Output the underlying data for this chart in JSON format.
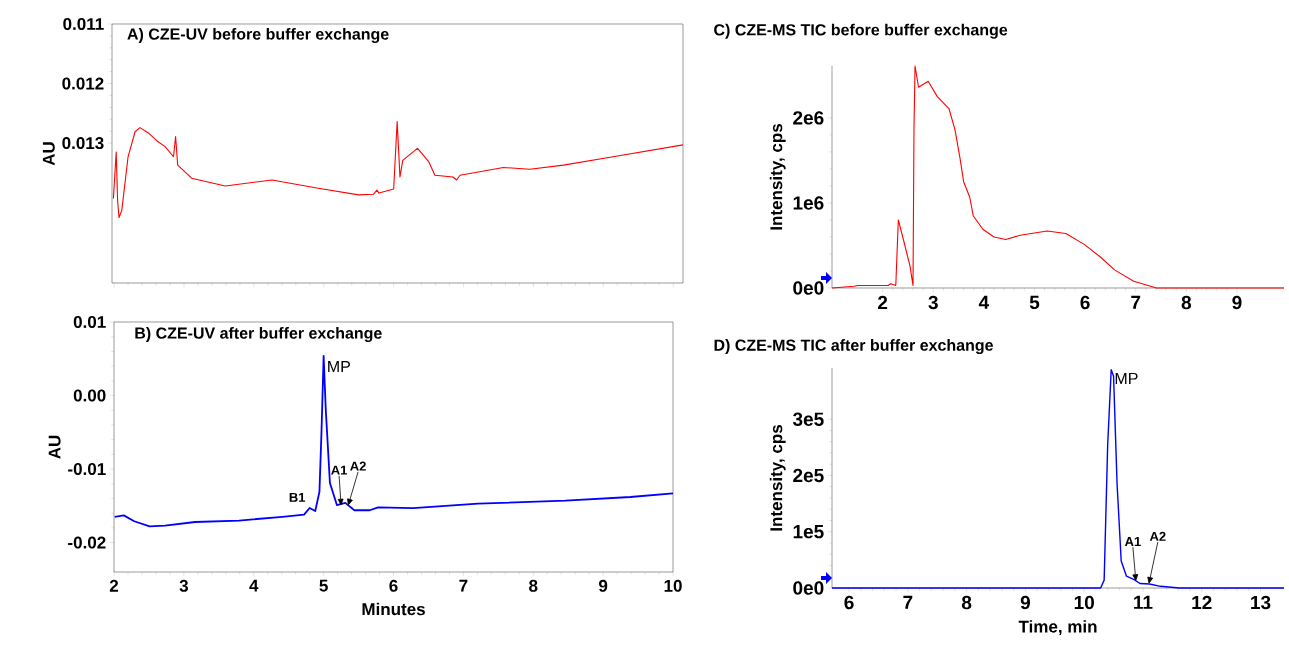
{
  "chart_data": [
    {
      "type": "line",
      "title": "A) CZE-UV before buffer exchange",
      "ylabel": "AU",
      "tick_labels": "y",
      "xlim": [
        1.97,
        10.14
      ],
      "ylim": [
        0.01535,
        0.011
      ],
      "xticks": [
        2,
        3,
        4,
        5,
        6,
        7,
        8,
        9,
        10
      ],
      "yticks": [
        0.011,
        0.012,
        0.013
      ],
      "x": [
        1.99,
        2.03,
        2.05,
        2.07,
        2.11,
        2.2,
        2.3,
        2.37,
        2.49,
        2.61,
        2.73,
        2.85,
        2.88,
        2.91,
        3.11,
        3.59,
        4.26,
        4.92,
        5.5,
        5.71,
        5.76,
        5.79,
        6.0,
        6.05,
        6.09,
        6.13,
        6.34,
        6.4,
        6.5,
        6.59,
        6.85,
        6.9,
        6.95,
        7.57,
        7.95,
        8.43,
        9.14,
        10.14
      ],
      "series": [
        {
          "color": "#ff0000",
          "values": [
            0.01393,
            0.01315,
            0.01396,
            0.01425,
            0.01413,
            0.01323,
            0.01281,
            0.01274,
            0.01283,
            0.01296,
            0.01306,
            0.01323,
            0.01289,
            0.01337,
            0.01359,
            0.01372,
            0.01362,
            0.01376,
            0.01387,
            0.01386,
            0.01379,
            0.01384,
            0.01377,
            0.01264,
            0.01357,
            0.01329,
            0.01309,
            0.01317,
            0.01331,
            0.01354,
            0.01357,
            0.01362,
            0.01354,
            0.01341,
            0.01344,
            0.01337,
            0.01323,
            0.01303
          ]
        }
      ]
    },
    {
      "type": "line",
      "title": "B) CZE-UV after buffer exchange",
      "xlabel": "Minutes",
      "ylabel": "AU",
      "xlim": [
        2,
        10
      ],
      "ylim": [
        -0.024,
        0.01
      ],
      "xticks": [
        2,
        3,
        4,
        5,
        6,
        7,
        8,
        9,
        10
      ],
      "yticks": [
        0.01,
        {
          "value": 0,
          "label": "0.00"
        },
        -0.01,
        -0.02
      ],
      "x": [
        2.01,
        2.14,
        2.29,
        2.51,
        2.73,
        3.16,
        3.79,
        4.41,
        4.72,
        4.8,
        4.88,
        4.94,
        4.97,
        5.0,
        5.03,
        5.09,
        5.19,
        5.31,
        5.44,
        5.66,
        5.78,
        6.28,
        7.21,
        8.46,
        9.39,
        10.0
      ],
      "series": [
        {
          "color": "#0000ff",
          "values": [
            -0.0165,
            -0.0163,
            -0.0171,
            -0.0178,
            -0.0177,
            -0.0172,
            -0.017,
            -0.0165,
            -0.0162,
            -0.0153,
            -0.0157,
            -0.0131,
            -0.0048,
            0.0054,
            -0.0018,
            -0.0119,
            -0.0149,
            -0.0146,
            -0.0156,
            -0.0156,
            -0.0152,
            -0.0153,
            -0.0147,
            -0.0143,
            -0.0138,
            -0.0133
          ]
        }
      ],
      "annotations": [
        {
          "text": "MP",
          "x": 5.0,
          "y": 0.0054
        },
        {
          "text": "B1",
          "x": 4.8,
          "y": -0.0153
        },
        {
          "text": "A1",
          "x": 5.25,
          "y": -0.015
        },
        {
          "text": "A2",
          "x": 5.35,
          "y": -0.015
        }
      ]
    },
    {
      "type": "line",
      "title": "C) CZE-MS TIC before buffer exchange",
      "ylabel": "Intensity, cps",
      "xlim": [
        1,
        9.93
      ],
      "ylim": [
        0,
        2610000
      ],
      "xticks": [
        2,
        3,
        4,
        5,
        6,
        7,
        8,
        9
      ],
      "yticks": [
        {
          "value": 0,
          "label": "0e0"
        },
        {
          "value": 1000000,
          "label": "1e6"
        },
        {
          "value": 2000000,
          "label": "2e6"
        }
      ],
      "x": [
        1.0,
        1.44,
        1.51,
        2.11,
        2.16,
        2.26,
        2.31,
        2.41,
        2.54,
        2.6,
        2.62,
        2.64,
        2.71,
        2.9,
        3.08,
        3.31,
        3.43,
        3.53,
        3.6,
        3.72,
        3.79,
        3.98,
        4.2,
        4.43,
        4.72,
        5.25,
        5.62,
        5.99,
        6.29,
        6.59,
        6.96,
        7.41,
        9.93
      ],
      "series": [
        {
          "color": "#ff0000",
          "values": [
            0,
            20000,
            30000,
            30000,
            50000,
            30000,
            800000,
            570000,
            260000,
            30000,
            1890000,
            2610000,
            2360000,
            2430000,
            2250000,
            2110000,
            1860000,
            1520000,
            1250000,
            1070000,
            850000,
            690000,
            600000,
            570000,
            620000,
            670000,
            640000,
            510000,
            370000,
            210000,
            80000,
            0,
            0
          ]
        }
      ]
    },
    {
      "type": "line",
      "title": "D) CZE-MS TIC after buffer exchange",
      "xlabel": "Time, min",
      "ylabel": "Intensity, cps",
      "xlim": [
        5.71,
        13.4
      ],
      "ylim": [
        0,
        391000
      ],
      "xticks": [
        6,
        7,
        8,
        9,
        10,
        11,
        12,
        13
      ],
      "yticks": [
        {
          "value": 0,
          "label": "0e0"
        },
        {
          "value": 100000,
          "label": "1e5"
        },
        {
          "value": 200000,
          "label": "2e5"
        },
        {
          "value": 300000,
          "label": "3e5"
        }
      ],
      "x": [
        5.71,
        10.28,
        10.34,
        10.4,
        10.46,
        10.5,
        10.56,
        10.63,
        10.72,
        10.85,
        10.95,
        11.11,
        11.3,
        11.62,
        13.4
      ],
      "series": [
        {
          "color": "#0000ff",
          "values": [
            0,
            0,
            14000,
            254000,
            388000,
            377000,
            185000,
            48000,
            21000,
            15000,
            8000,
            7000,
            3000,
            0,
            0
          ]
        }
      ],
      "annotations": [
        {
          "text": "MP",
          "x": 10.46,
          "y": 388000
        },
        {
          "text": "A1",
          "x": 10.88,
          "y": 12000
        },
        {
          "text": "A2",
          "x": 11.1,
          "y": 7000
        }
      ]
    }
  ]
}
